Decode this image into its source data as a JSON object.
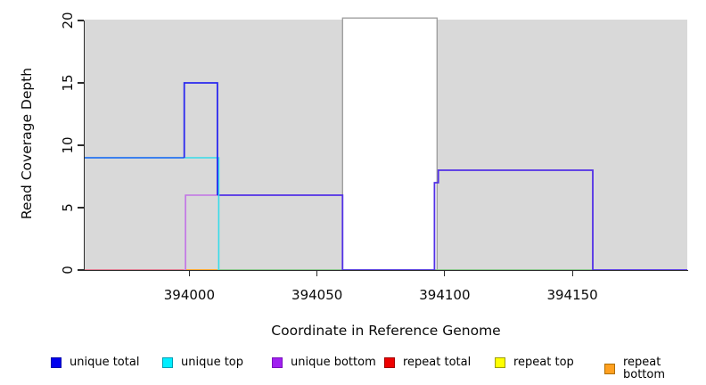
{
  "chart_data": {
    "type": "line",
    "subtype": "step-coverage",
    "title": "",
    "xlabel": "Coordinate in Reference Genome",
    "ylabel": "Read Coverage Depth",
    "xlim": [
      393959,
      394195
    ],
    "ylim": [
      0,
      20
    ],
    "x_ticks": [
      394000,
      394050,
      394100,
      394150
    ],
    "y_ticks": [
      0,
      5,
      10,
      15,
      20
    ],
    "grid": false,
    "legend_position": "bottom",
    "plot_background": "#d9d9d9",
    "highlight_region": {
      "x0": 394060,
      "x1": 394097,
      "fill": "#ffffff",
      "border": "#9a9a9a"
    },
    "series": [
      {
        "name": "unique total",
        "color": "#0000ee",
        "step": "post",
        "points": [
          [
            393959,
            9
          ],
          [
            393998,
            15
          ],
          [
            394011,
            6
          ],
          [
            394060,
            0
          ],
          [
            394096,
            7
          ],
          [
            394098,
            8
          ],
          [
            394158,
            0
          ],
          [
            394195,
            0
          ]
        ]
      },
      {
        "name": "unique top",
        "color": "#00e5ee",
        "step": "post",
        "points": [
          [
            393959,
            9
          ],
          [
            394011,
            0
          ],
          [
            394195,
            0
          ]
        ]
      },
      {
        "name": "unique bottom",
        "color": "#a020f0",
        "step": "post",
        "points": [
          [
            393959,
            0
          ],
          [
            393999,
            6
          ],
          [
            394060,
            0
          ],
          [
            394096,
            7
          ],
          [
            394098,
            8
          ],
          [
            394158,
            0
          ],
          [
            394195,
            0
          ]
        ]
      },
      {
        "name": "repeat total",
        "color": "#ee0000",
        "step": "post",
        "points": [
          [
            393959,
            0
          ],
          [
            394195,
            0
          ]
        ]
      },
      {
        "name": "repeat top",
        "color": "#ffff00",
        "step": "post",
        "points": [
          [
            393959,
            0
          ],
          [
            394195,
            0
          ]
        ]
      },
      {
        "name": "repeat bottom",
        "color": "#ffa020",
        "step": "post",
        "points": [
          [
            393959,
            0
          ],
          [
            394195,
            0
          ]
        ]
      }
    ],
    "render_segments": [
      {
        "name": "repeat-total-zero",
        "color": "#e0617b",
        "width": 1.6,
        "points": [
          [
            393959,
            0
          ],
          [
            393998,
            0
          ]
        ]
      },
      {
        "name": "zero-line-green",
        "color": "#72c175",
        "width": 1.6,
        "points": [
          [
            394011,
            0
          ],
          [
            394158,
            0
          ]
        ]
      },
      {
        "name": "repeat-bottom-zero",
        "color": "#ffa018",
        "width": 1.8,
        "points": [
          [
            393998.5,
            0
          ],
          [
            394011,
            0
          ]
        ]
      },
      {
        "name": "unique-total-bottom-overlap",
        "color": "#5230e6",
        "width": 1.8,
        "points": [
          [
            394011,
            6
          ],
          [
            394060,
            6
          ],
          [
            394060,
            0
          ],
          [
            394096,
            0
          ],
          [
            394096,
            7
          ],
          [
            394097.5,
            7
          ],
          [
            394097.5,
            8
          ],
          [
            394158,
            8
          ],
          [
            394158,
            0
          ],
          [
            394195,
            0
          ]
        ]
      },
      {
        "name": "unique-top-step",
        "color": "#35dce9",
        "width": 1.6,
        "points": [
          [
            393998,
            9
          ],
          [
            394011.5,
            9
          ],
          [
            394011.5,
            0
          ]
        ]
      },
      {
        "name": "unique-bottom-step",
        "color": "#c172e6",
        "width": 1.6,
        "points": [
          [
            393998.5,
            0
          ],
          [
            393998.5,
            6
          ],
          [
            394011,
            6
          ]
        ]
      },
      {
        "name": "unique-total-left",
        "color": "#2573f0",
        "width": 1.8,
        "points": [
          [
            393959,
            9
          ],
          [
            393998,
            9
          ]
        ]
      },
      {
        "name": "unique-total-peak",
        "color": "#2b29ef",
        "width": 1.8,
        "points": [
          [
            393998,
            9
          ],
          [
            393998,
            15
          ],
          [
            394011,
            15
          ],
          [
            394011,
            6
          ]
        ]
      }
    ]
  },
  "legend": {
    "items": [
      {
        "label": "unique total",
        "fill": "#0000ee",
        "border": "#0000aa"
      },
      {
        "label": "unique top",
        "fill": "#00eeff",
        "border": "#009db4"
      },
      {
        "label": "unique bottom",
        "fill": "#a020f0",
        "border": "#7a10bc"
      },
      {
        "label": "repeat total",
        "fill": "#ee0000",
        "border": "#a00000"
      },
      {
        "label": "repeat top",
        "fill": "#ffff00",
        "border": "#9c9c00"
      },
      {
        "label": "repeat bottom",
        "fill": "#ffa020",
        "border": "#b06e00"
      }
    ]
  }
}
